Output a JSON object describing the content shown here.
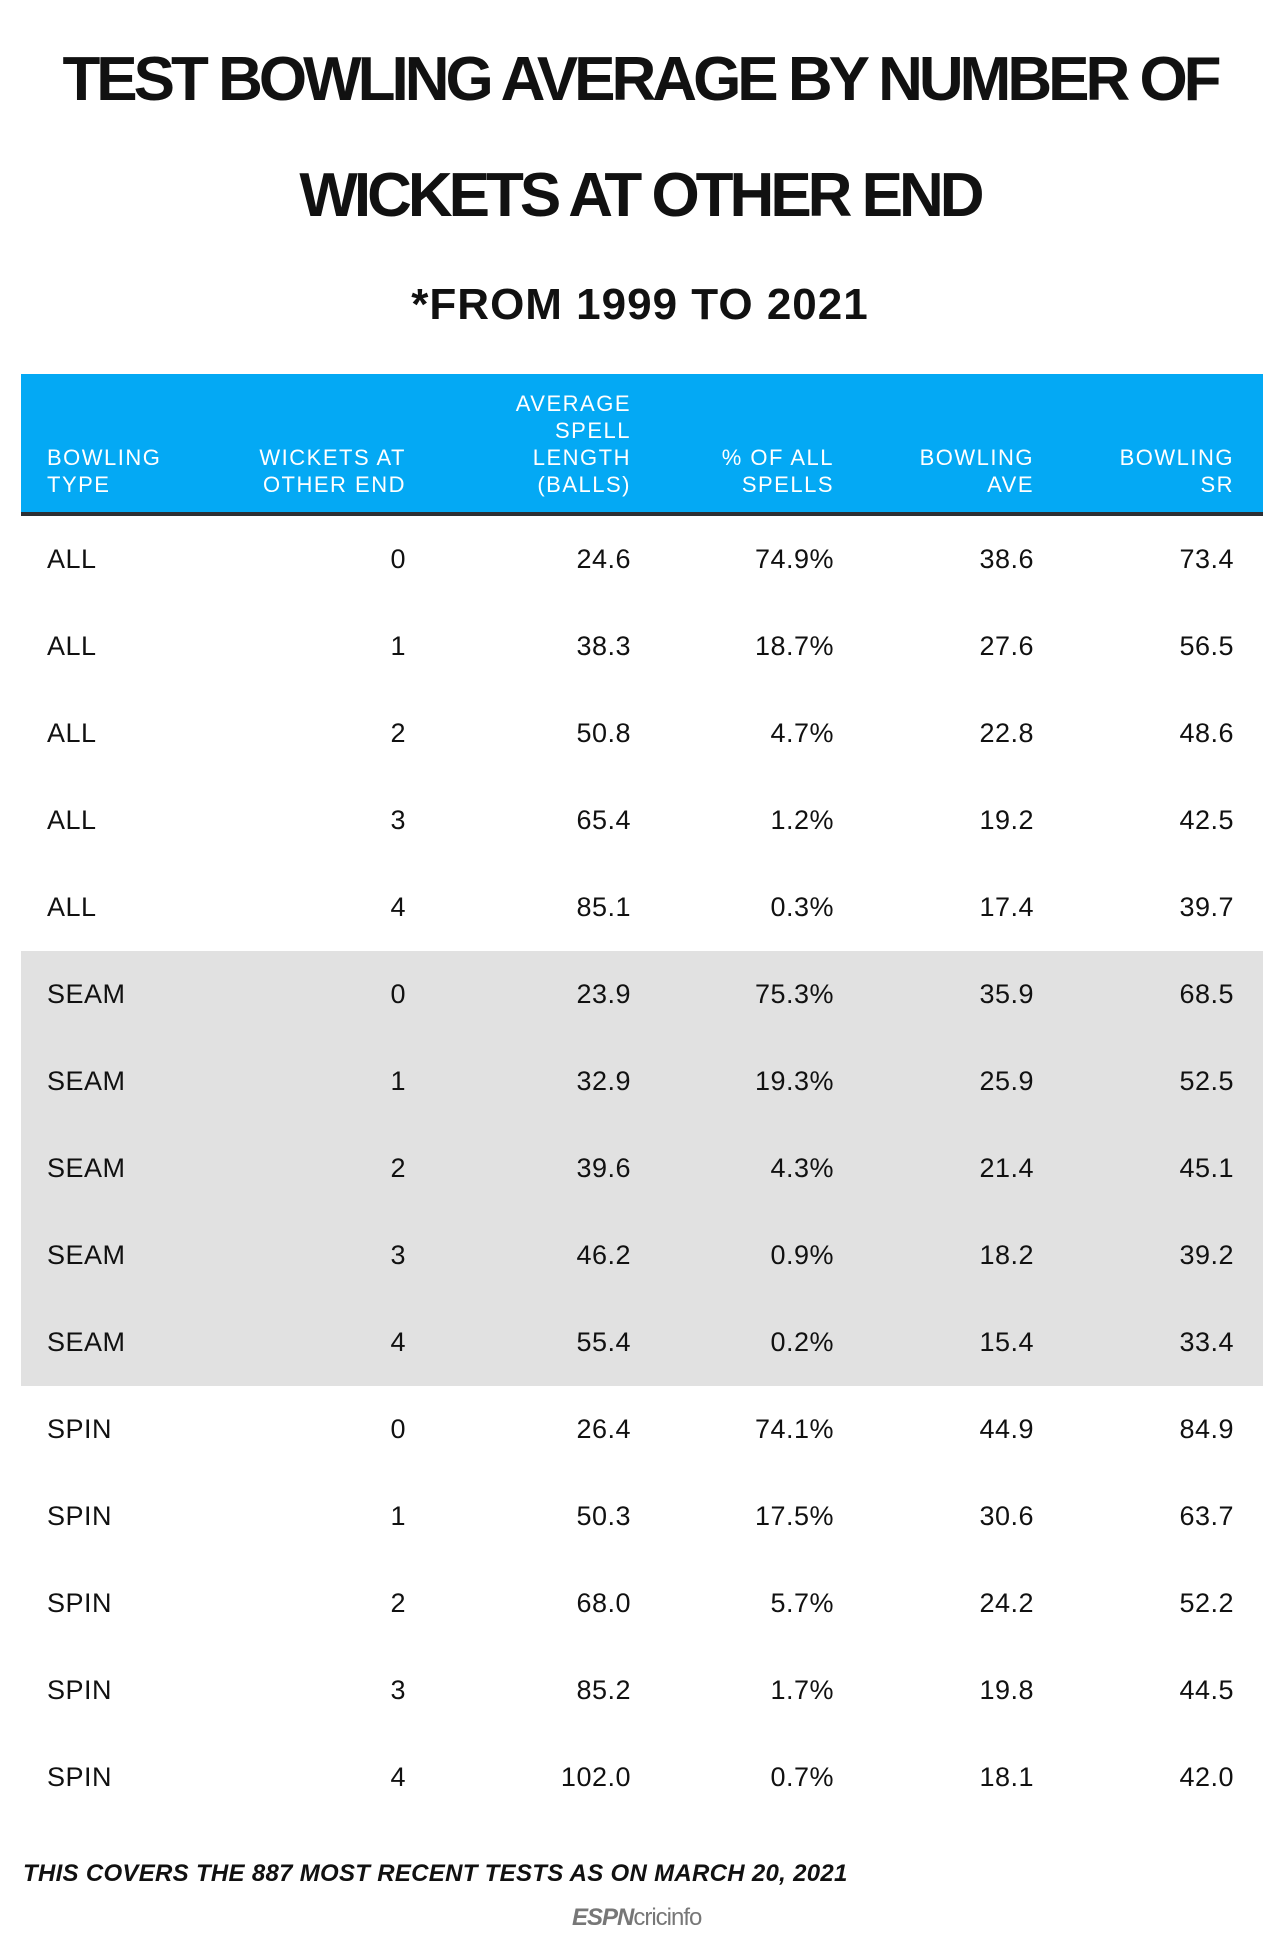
{
  "title_line1": "TEST BOWLING AVERAGE BY NUMBER OF",
  "title_line2": "WICKETS AT OTHER END",
  "subtitle": "*FROM 1999 TO 2021",
  "footnote": "THIS COVERS THE 887 MOST RECENT TESTS AS ON MARCH 20, 2021",
  "logo": {
    "espn": "ESPN",
    "cricinfo": "cricinfo"
  },
  "colors": {
    "header": "#04a9f4",
    "band": "#e1e1e1",
    "header_border": "#2d2f33"
  },
  "chart_data": {
    "type": "table",
    "title": "TEST BOWLING AVERAGE BY NUMBER OF WICKETS AT OTHER END",
    "subtitle": "*FROM 1999 TO 2021",
    "columns": [
      "BOWLING TYPE",
      "WICKETS AT OTHER END",
      "AVERAGE SPELL LENGTH (BALLS)",
      "% OF ALL SPELLS",
      "BOWLING AVE",
      "BOWLING SR"
    ],
    "column_lines": [
      [
        "BOWLING",
        "TYPE"
      ],
      [
        "WICKETS AT",
        "OTHER END"
      ],
      [
        "AVERAGE",
        "SPELL",
        "LENGTH",
        "(BALLS)"
      ],
      [
        "% OF ALL",
        "SPELLS"
      ],
      [
        "BOWLING",
        "AVE"
      ],
      [
        "BOWLING",
        "SR"
      ]
    ],
    "rows": [
      [
        "ALL",
        "0",
        "24.6",
        "74.9%",
        "38.6",
        "73.4"
      ],
      [
        "ALL",
        "1",
        "38.3",
        "18.7%",
        "27.6",
        "56.5"
      ],
      [
        "ALL",
        "2",
        "50.8",
        "4.7%",
        "22.8",
        "48.6"
      ],
      [
        "ALL",
        "3",
        "65.4",
        "1.2%",
        "19.2",
        "42.5"
      ],
      [
        "ALL",
        "4",
        "85.1",
        "0.3%",
        "17.4",
        "39.7"
      ],
      [
        "SEAM",
        "0",
        "23.9",
        "75.3%",
        "35.9",
        "68.5"
      ],
      [
        "SEAM",
        "1",
        "32.9",
        "19.3%",
        "25.9",
        "52.5"
      ],
      [
        "SEAM",
        "2",
        "39.6",
        "4.3%",
        "21.4",
        "45.1"
      ],
      [
        "SEAM",
        "3",
        "46.2",
        "0.9%",
        "18.2",
        "39.2"
      ],
      [
        "SEAM",
        "4",
        "55.4",
        "0.2%",
        "15.4",
        "33.4"
      ],
      [
        "SPIN",
        "0",
        "26.4",
        "74.1%",
        "44.9",
        "84.9"
      ],
      [
        "SPIN",
        "1",
        "50.3",
        "17.5%",
        "30.6",
        "63.7"
      ],
      [
        "SPIN",
        "2",
        "68.0",
        "5.7%",
        "24.2",
        "52.2"
      ],
      [
        "SPIN",
        "3",
        "85.2",
        "1.7%",
        "19.8",
        "44.5"
      ],
      [
        "SPIN",
        "4",
        "102.0",
        "0.7%",
        "18.1",
        "42.0"
      ]
    ]
  }
}
